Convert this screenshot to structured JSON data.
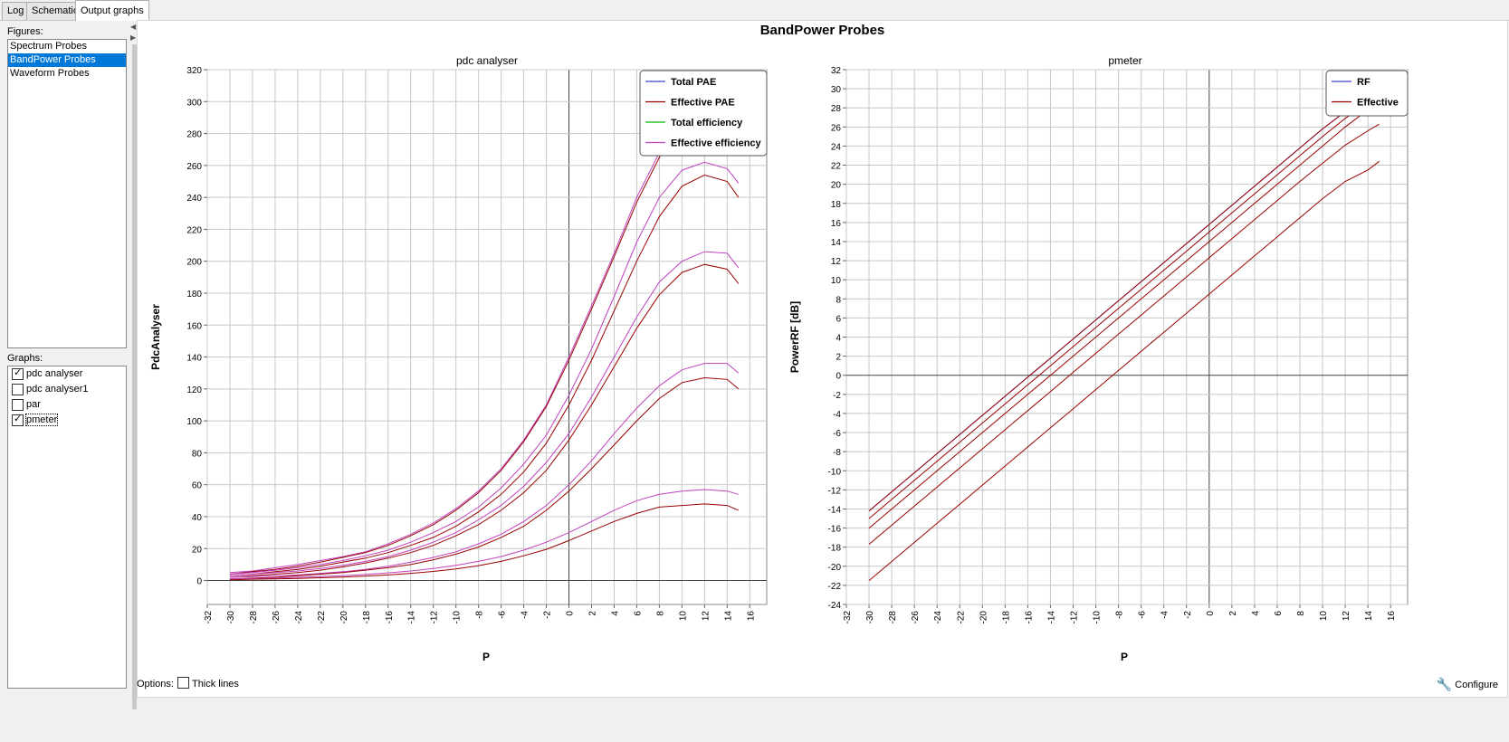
{
  "tabs": [
    "Log",
    "Schematic",
    "Output graphs"
  ],
  "left": {
    "figures_label": "Figures:",
    "figures": [
      "Spectrum Probes",
      "BandPower Probes",
      "Waveform Probes"
    ],
    "graphs_label": "Graphs:",
    "graphs": [
      {
        "label": "pdc analyser",
        "checked": true
      },
      {
        "label": "pdc analyser1",
        "checked": false
      },
      {
        "label": "par",
        "checked": false
      },
      {
        "label": "pmeter",
        "checked": true
      }
    ]
  },
  "page_title": "BandPower Probes",
  "options_label": "Options:",
  "thick_lines_label": "Thick lines",
  "configure_label": "Configure",
  "chart_data": [
    {
      "type": "line",
      "title": "pdc analyser",
      "xlabel": "P",
      "ylabel": "PdcAnalyser",
      "xlim": [
        -32,
        17.5
      ],
      "ylim": [
        -15,
        320
      ],
      "xticks": [
        -32,
        -30,
        -28,
        -26,
        -24,
        -22,
        -20,
        -18,
        -16,
        -14,
        -12,
        -10,
        -8,
        -6,
        -4,
        -2,
        0,
        2,
        4,
        6,
        8,
        10,
        12,
        14,
        16
      ],
      "yticks": [
        0,
        20,
        40,
        60,
        80,
        100,
        120,
        140,
        160,
        180,
        200,
        220,
        240,
        260,
        280,
        300,
        320
      ],
      "grid": true,
      "legend_position": "top-right",
      "legend": [
        {
          "name": "Total PAE",
          "color": "#4040d0"
        },
        {
          "name": "Effective PAE",
          "color": "#990000"
        },
        {
          "name": "Total efficiency",
          "color": "#00bb00"
        },
        {
          "name": "Effective efficiency",
          "color": "#c040c0"
        }
      ],
      "x": [
        -30,
        -28,
        -26,
        -24,
        -22,
        -20,
        -18,
        -16,
        -14,
        -12,
        -10,
        -8,
        -6,
        -4,
        -2,
        0,
        2,
        4,
        6,
        8,
        10,
        12,
        14,
        15
      ],
      "series": [
        {
          "color": "#c040c0",
          "values": [
            5,
            6,
            8,
            10,
            12.5,
            15,
            18,
            23,
            29,
            36,
            45,
            56,
            70,
            88,
            110,
            140,
            172,
            205,
            240,
            268,
            290,
            300,
            300,
            295
          ]
        },
        {
          "color": "#990000",
          "values": [
            4,
            5.5,
            7,
            9,
            11.5,
            14.5,
            17.5,
            22,
            28,
            35,
            44,
            55,
            69,
            87,
            109,
            138,
            170,
            203,
            237,
            265,
            288,
            298,
            299,
            293
          ]
        },
        {
          "color": "#c040c0",
          "values": [
            4,
            5,
            6.5,
            8,
            10,
            12.5,
            15.5,
            19,
            24,
            30,
            37,
            46,
            58,
            73,
            91,
            116,
            145,
            178,
            212,
            240,
            257,
            262,
            258,
            249
          ]
        },
        {
          "color": "#990000",
          "values": [
            3,
            4,
            5.5,
            7,
            9,
            11.5,
            14,
            17.5,
            22,
            27,
            34,
            43,
            54,
            68,
            86,
            110,
            138,
            169,
            200,
            228,
            247,
            254,
            250,
            240
          ]
        },
        {
          "color": "#c040c0",
          "values": [
            3,
            4,
            5,
            6,
            7.5,
            9.5,
            12,
            15,
            19,
            24,
            30,
            38,
            47,
            59,
            74,
            92,
            115,
            140,
            165,
            187,
            200,
            206,
            205,
            196
          ]
        },
        {
          "color": "#990000",
          "values": [
            2,
            3,
            4,
            5,
            6.5,
            8.5,
            11,
            14,
            17.5,
            22,
            28,
            35,
            44,
            55,
            69,
            88,
            110,
            134,
            158,
            179,
            193,
            198,
            195,
            186
          ]
        },
        {
          "color": "#c040c0",
          "values": [
            2,
            2.5,
            3,
            3.5,
            4.5,
            5.5,
            7,
            9,
            11.5,
            14.5,
            18,
            23,
            29,
            37,
            47,
            60,
            75,
            92,
            108,
            122,
            132,
            136,
            136,
            130
          ]
        },
        {
          "color": "#990000",
          "values": [
            1,
            1.5,
            2,
            3,
            4,
            5,
            6.5,
            8,
            10,
            13,
            16.5,
            21,
            27,
            34,
            44,
            56,
            70,
            85,
            100,
            114,
            124,
            127,
            126,
            120
          ]
        },
        {
          "color": "#c040c0",
          "values": [
            1,
            1.2,
            1.5,
            2,
            2.5,
            3,
            3.8,
            4.8,
            6,
            7.5,
            9.5,
            12,
            15,
            19,
            24,
            30,
            37,
            44,
            50,
            54,
            56,
            57,
            56,
            54
          ]
        },
        {
          "color": "#990000",
          "values": [
            0.5,
            0.8,
            1,
            1.3,
            1.7,
            2.2,
            2.8,
            3.5,
            4.5,
            5.7,
            7.3,
            9.3,
            12,
            15.5,
            19.5,
            25,
            31,
            37,
            42,
            46,
            47,
            48,
            47,
            44
          ]
        }
      ]
    },
    {
      "type": "line",
      "title": "pmeter",
      "xlabel": "P",
      "ylabel": "PowerRF [dB]",
      "xlim": [
        -32,
        17.5
      ],
      "ylim": [
        -24,
        32
      ],
      "xticks": [
        -32,
        -30,
        -28,
        -26,
        -24,
        -22,
        -20,
        -18,
        -16,
        -14,
        -12,
        -10,
        -8,
        -6,
        -4,
        -2,
        0,
        2,
        4,
        6,
        8,
        10,
        12,
        14,
        16
      ],
      "yticks": [
        -24,
        -22,
        -20,
        -18,
        -16,
        -14,
        -12,
        -10,
        -8,
        -6,
        -4,
        -2,
        0,
        2,
        4,
        6,
        8,
        10,
        12,
        14,
        16,
        18,
        20,
        22,
        24,
        26,
        28,
        30,
        32
      ],
      "grid": true,
      "legend_position": "top-right",
      "legend": [
        {
          "name": "RF",
          "color": "#4040d0"
        },
        {
          "name": "Effective",
          "color": "#990000"
        }
      ],
      "x": [
        -30,
        -28,
        -26,
        -24,
        -22,
        -20,
        -18,
        -16,
        -14,
        -12,
        -10,
        -8,
        -6,
        -4,
        -2,
        0,
        2,
        4,
        6,
        8,
        10,
        12,
        14,
        15
      ],
      "series": [
        {
          "color": "#4040d0",
          "values": [
            -14.2,
            -12.2,
            -10.2,
            -8.2,
            -6.2,
            -4.2,
            -2.2,
            -0.2,
            1.8,
            3.8,
            5.8,
            7.8,
            9.8,
            11.8,
            13.8,
            15.8,
            17.8,
            19.8,
            21.8,
            23.8,
            25.8,
            27.6,
            29.2,
            30
          ]
        },
        {
          "color": "#990000",
          "values": [
            -14.2,
            -12.2,
            -10.2,
            -8.2,
            -6.2,
            -4.2,
            -2.2,
            -0.2,
            1.8,
            3.8,
            5.8,
            7.8,
            9.8,
            11.8,
            13.8,
            15.8,
            17.8,
            19.8,
            21.8,
            23.8,
            25.8,
            27.6,
            29.2,
            30
          ]
        },
        {
          "color": "#990000",
          "values": [
            -15,
            -13,
            -11,
            -9,
            -7,
            -5,
            -3,
            -1,
            1,
            3,
            5,
            7,
            9,
            11,
            13,
            15,
            17,
            19,
            21,
            23,
            25,
            26.9,
            28.5,
            29.2
          ]
        },
        {
          "color": "#990000",
          "values": [
            -16,
            -14,
            -12,
            -10,
            -8,
            -6,
            -4,
            -2,
            0,
            2,
            4,
            6,
            8,
            10,
            12,
            14,
            16,
            18,
            20,
            22,
            24,
            26,
            27.8,
            28.5
          ]
        },
        {
          "color": "#990000",
          "values": [
            -17.7,
            -15.7,
            -13.7,
            -11.7,
            -9.7,
            -7.7,
            -5.7,
            -3.7,
            -1.7,
            0.3,
            2.3,
            4.3,
            6.3,
            8.3,
            10.3,
            12.3,
            14.3,
            16.3,
            18.3,
            20.3,
            22.2,
            24.1,
            25.6,
            26.3
          ]
        },
        {
          "color": "#990000",
          "values": [
            -21.5,
            -19.5,
            -17.5,
            -15.5,
            -13.5,
            -11.5,
            -9.5,
            -7.5,
            -5.5,
            -3.5,
            -1.5,
            0.5,
            2.5,
            4.5,
            6.5,
            8.5,
            10.5,
            12.5,
            14.5,
            16.5,
            18.5,
            20.3,
            21.5,
            22.4
          ]
        }
      ]
    }
  ]
}
